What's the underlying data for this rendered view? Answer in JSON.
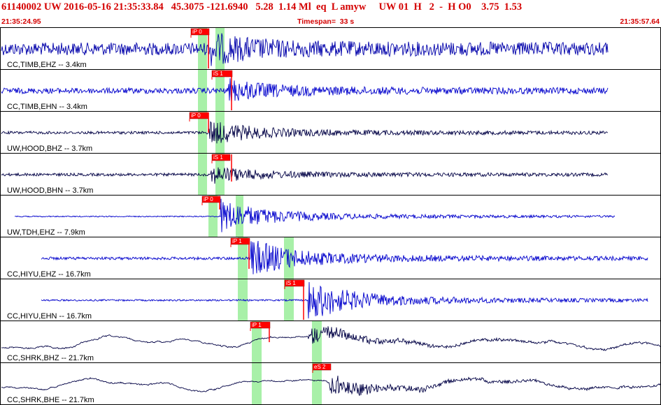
{
  "header": {
    "title": "61140002 UW 2016-05-16 21:35:33.84   45.3075 -121.6940   5.28  1.14 Ml  eq  L amyw     UW 01  H   2  -  H O0    3.75  1.53",
    "start_time": "21:35:24.95",
    "timespan_label": "Timespan=  33 s",
    "end_time": "21:35:57.64"
  },
  "colors": {
    "border": "#000000",
    "trace_blue": "#0000cc",
    "trace_navy": "#000044",
    "pick_red": "#ff0000",
    "window_green": "#a8f0a8",
    "text_red": "#d40000"
  },
  "channels": [
    {
      "label": "CC,TIMB,EHZ -- 3.4km",
      "color": "navy_blue",
      "pick": "iP 0",
      "start": 0.0,
      "end": 0.92
    },
    {
      "label": "CC,TIMB,EHN -- 3.4km",
      "color": "blue",
      "pick": "iS 1",
      "start": 0.0,
      "end": 0.92
    },
    {
      "label": "UW,HOOD,BHZ -- 3.7km",
      "color": "navy",
      "pick": "iP 0",
      "start": 0.0,
      "end": 0.92
    },
    {
      "label": "UW,HOOD,BHN -- 3.7km",
      "color": "navy",
      "pick": "iS 1",
      "start": 0.0,
      "end": 0.92
    },
    {
      "label": "UW,TDH,EHZ -- 7.9km",
      "color": "blue",
      "pick": "iP 0",
      "start": 0.02,
      "end": 0.93
    },
    {
      "label": "CC,HIYU,EHZ -- 16.7km",
      "color": "blue",
      "pick": "iP 1",
      "start": 0.06,
      "end": 0.98
    },
    {
      "label": "CC,HIYU,EHN -- 16.7km",
      "color": "blue",
      "pick": "iS 1",
      "start": 0.06,
      "end": 0.98
    },
    {
      "label": "CC,SHRK,BHZ -- 21.7km",
      "color": "navy",
      "pick": "iP 1",
      "start": 0.0,
      "end": 1.0
    },
    {
      "label": "CC,SHRK,BHE -- 21.7km",
      "color": "navy",
      "pick": "eS 2",
      "start": 0.0,
      "end": 1.0
    }
  ]
}
